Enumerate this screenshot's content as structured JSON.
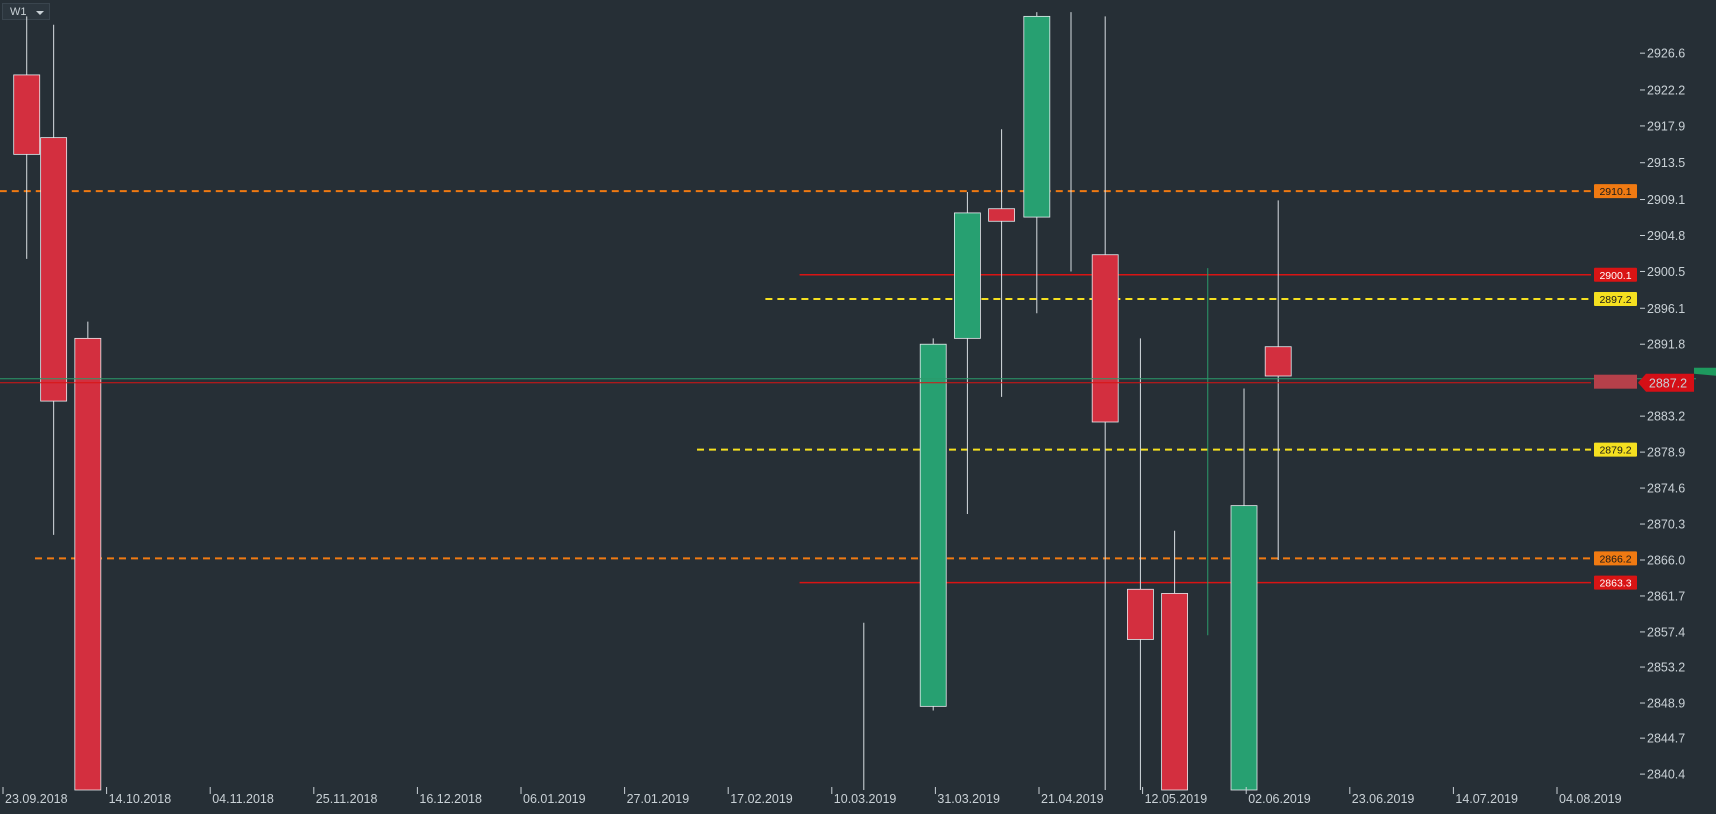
{
  "toolbar": {
    "timeframe": "W1"
  },
  "colors": {
    "background": "#262f36",
    "bull": "#27a071",
    "bear": "#d32f3f",
    "wick": "#d7dde1",
    "axis_text": "#c9d1d6",
    "orange": "#f07a12",
    "yellow": "#f5e020",
    "red_line": "#d91414",
    "green_line": "#2a9a6a"
  },
  "chart_data": {
    "type": "candlestick",
    "timeframe": "W1",
    "x_labels": [
      "23.09.2018",
      "14.10.2018",
      "04.11.2018",
      "25.11.2018",
      "16.12.2018",
      "06.01.2019",
      "27.01.2019",
      "17.02.2019",
      "10.03.2019",
      "31.03.2019",
      "21.04.2019",
      "12.05.2019",
      "02.06.2019",
      "23.06.2019",
      "14.07.2019",
      "04.08.2019"
    ],
    "y_ticks": [
      "2926.6",
      "2922.2",
      "2917.9",
      "2913.5",
      "2909.1",
      "2904.8",
      "2900.5",
      "2896.1",
      "2891.8",
      "2883.2",
      "2878.9",
      "2874.6",
      "2870.3",
      "2866.0",
      "2861.7",
      "2857.4",
      "2853.2",
      "2848.9",
      "2844.7",
      "2840.4"
    ],
    "ylim": [
      2838.5,
      2932.0
    ],
    "candles": [
      {
        "x": -0.08,
        "open": 2924.0,
        "high": 2931.0,
        "low": 2902.0,
        "close": 2914.5
      },
      {
        "x": 0.18,
        "open": 2916.5,
        "high": 2930.0,
        "low": 2869.0,
        "close": 2885.0
      },
      {
        "x": 0.51,
        "open": 2892.5,
        "high": 2894.5,
        "low": 2838.5,
        "close": 2838.5
      },
      {
        "x": 8.0,
        "open": 2838.5,
        "high": 2858.5,
        "low": 2838.5,
        "close": 2838.5
      },
      {
        "x": 8.67,
        "open": 2848.5,
        "high": 2892.5,
        "low": 2848.0,
        "close": 2891.8
      },
      {
        "x": 9.0,
        "open": 2892.5,
        "high": 2910.0,
        "low": 2871.5,
        "close": 2907.5
      },
      {
        "x": 9.33,
        "open": 2908.0,
        "high": 2917.5,
        "low": 2885.5,
        "close": 2906.5
      },
      {
        "x": 9.67,
        "open": 2907.0,
        "high": 2931.5,
        "low": 2895.5,
        "close": 2931.0
      },
      {
        "x": 10.0,
        "open": 2931.5,
        "high": 2931.5,
        "low": 2900.5,
        "close": 2931.5
      },
      {
        "x": 10.33,
        "open": 2902.5,
        "high": 2931.0,
        "low": 2838.5,
        "close": 2882.5
      },
      {
        "x": 10.67,
        "open": 2862.5,
        "high": 2892.5,
        "low": 2838.5,
        "close": 2856.5
      },
      {
        "x": 11.0,
        "open": 2862.0,
        "high": 2869.5,
        "low": 2838.5,
        "close": 2838.5
      },
      {
        "x": 11.67,
        "open": 2838.5,
        "high": 2886.5,
        "low": 2838.5,
        "close": 2872.5
      },
      {
        "x": 12.0,
        "open": 2891.5,
        "high": 2909.0,
        "low": 2866.0,
        "close": 2888.0
      }
    ],
    "levels": [
      {
        "value": 2910.1,
        "label": "2910.1",
        "style": "dashed",
        "color": "#f07a12",
        "from_x": -0.34
      },
      {
        "value": 2900.1,
        "label": "2900.1",
        "style": "solid",
        "color": "#d91414",
        "from_x": 7.38
      },
      {
        "value": 2897.2,
        "label": "2897.2",
        "style": "dashed",
        "color": "#f5e020",
        "from_x": 7.05
      },
      {
        "value": 2879.2,
        "label": "2879.2",
        "style": "dashed",
        "color": "#f5e020",
        "from_x": 6.39
      },
      {
        "value": 2866.2,
        "label": "2866.2",
        "style": "dashed",
        "color": "#f07a12",
        "from_x": -0.0
      },
      {
        "value": 2863.3,
        "label": "2863.3",
        "style": "solid",
        "color": "#d91414",
        "from_x": 7.38
      }
    ],
    "current_price": {
      "value": 2887.2,
      "label": "2887.2"
    }
  }
}
